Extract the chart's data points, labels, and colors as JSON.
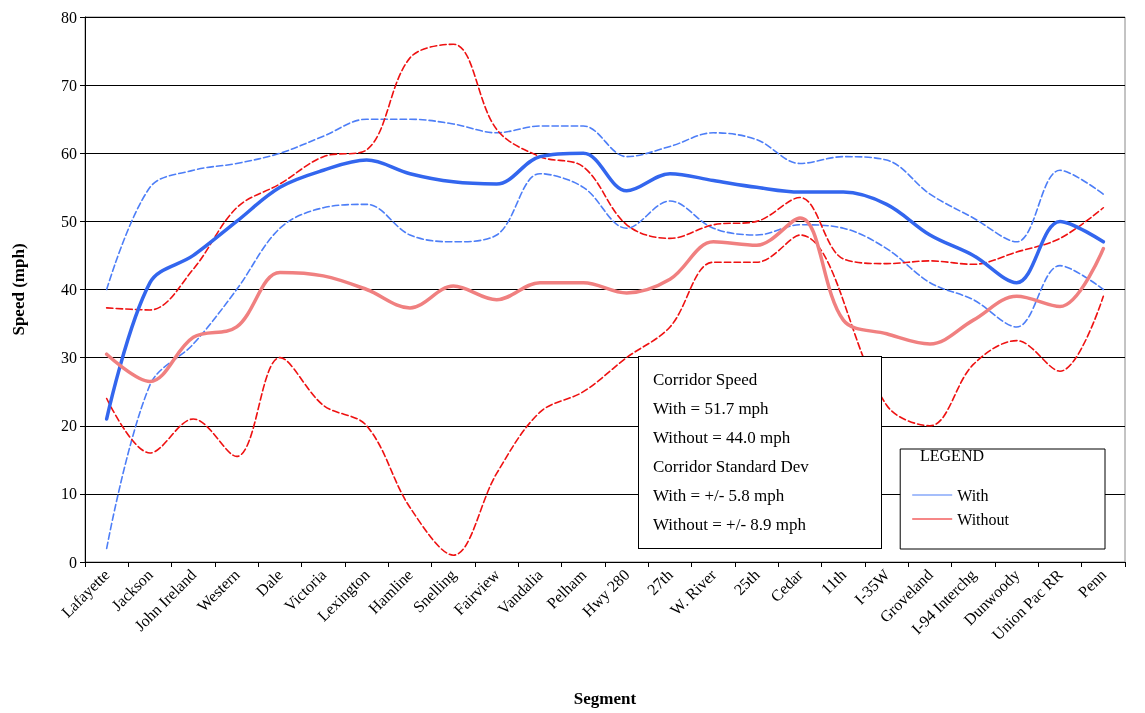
{
  "chart_data": {
    "type": "line",
    "xlabel": "Segment",
    "ylabel": "Speed (mph)",
    "legend_title": "LEGEND",
    "legend": "bottom right",
    "grid": "y",
    "marker": "none",
    "categories": [
      "Lafayette",
      "Jackson",
      "John Ireland",
      "Western",
      "Dale",
      "Victoria",
      "Lexington",
      "Hamline",
      "Snelling",
      "Fairview",
      "Vandalia",
      "Pelham",
      "Hwy 280",
      "27th",
      "W. River",
      "25th",
      "Cedar",
      "11th",
      "I-35W",
      "Groveland",
      "I-94 Interchg",
      "Dunwoody",
      "Union Pac RR",
      "Penn"
    ],
    "ylim": [
      0,
      80
    ],
    "yticks": [
      0,
      10,
      20,
      30,
      40,
      50,
      60,
      70,
      80
    ],
    "series": [
      {
        "name": "With",
        "color": "#4d7ef7",
        "line_style": "dashed",
        "values": [
          40,
          55,
          57.5,
          58.5,
          60,
          62.5,
          65,
          65,
          64.3,
          63,
          64,
          64,
          59.5,
          61,
          63,
          62,
          58.5,
          59.5,
          59,
          54,
          50.5,
          47,
          57.5,
          54
        ]
      },
      {
        "color": "#4d7ef7",
        "line_style": "dashed",
        "values": [
          2,
          26,
          32,
          40,
          49,
          52,
          52.5,
          48,
          47,
          48,
          57,
          55,
          49,
          53,
          49,
          48,
          49.5,
          49,
          46,
          41,
          38.5,
          34.5,
          43.5,
          40
        ]
      },
      {
        "color": "#3366ee",
        "line_style": "solid",
        "values": [
          21,
          41,
          45,
          50,
          55,
          57.5,
          59,
          57,
          55.8,
          55.5,
          59.5,
          60,
          54.5,
          57,
          56,
          55,
          54.3,
          54.3,
          52.5,
          48,
          45,
          41,
          50,
          47
        ]
      },
      {
        "name": "Without",
        "color": "#ee1111",
        "line_style": "dashed",
        "values": [
          37.3,
          37,
          43,
          52,
          55.5,
          59.5,
          60.5,
          74,
          76,
          63.5,
          59.5,
          58,
          49.5,
          47.5,
          49.5,
          50,
          53.5,
          44.5,
          43.8,
          44.2,
          43.7,
          45.5,
          47.5,
          52
        ]
      },
      {
        "color": "#ee1111",
        "line_style": "dashed",
        "values": [
          24,
          16,
          21,
          15.5,
          30,
          23,
          20,
          8,
          1,
          13,
          22,
          25,
          30,
          34.5,
          44,
          44,
          48,
          null,
          23,
          20,
          29,
          32.5,
          28,
          39
        ]
      },
      {
        "color": "#f08080",
        "line_style": "solid",
        "values": [
          30.5,
          26.5,
          33,
          34.5,
          42.5,
          42,
          40,
          37.3,
          40.5,
          38.5,
          41,
          41,
          39.5,
          41.5,
          47,
          46.5,
          50.5,
          35.5,
          33.5,
          32,
          35.5,
          39,
          37.5,
          46
        ]
      }
    ],
    "annotations": [
      "Corridor Speed",
      "With = 51.7 mph",
      "Without = 44.0 mph",
      "Corridor Standard Dev",
      "With = +/- 5.8 mph",
      "Without = +/- 8.9 mph"
    ]
  }
}
